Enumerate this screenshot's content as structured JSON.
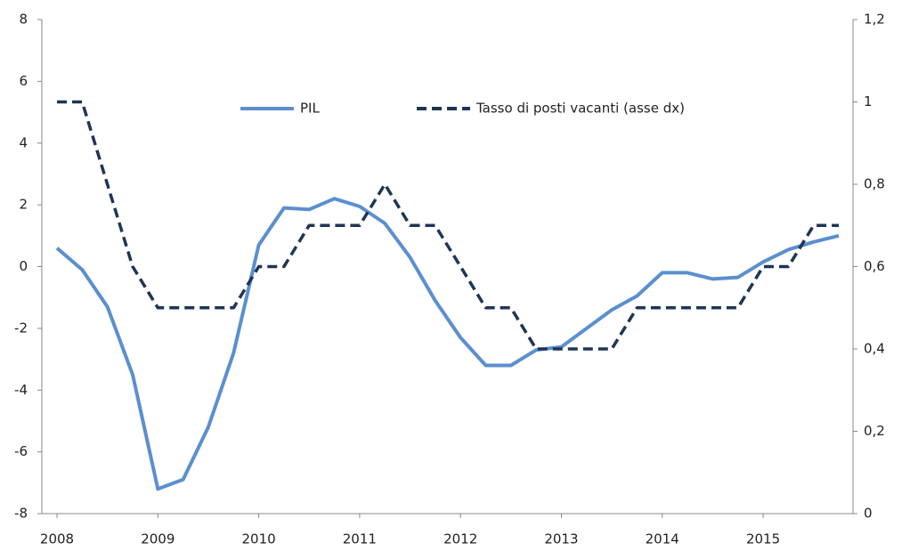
{
  "chart_data": {
    "type": "line",
    "categories": [
      "2008",
      null,
      null,
      null,
      "2009",
      null,
      null,
      null,
      "2010",
      null,
      null,
      null,
      "2011",
      null,
      null,
      null,
      "2012",
      null,
      null,
      null,
      "2013",
      null,
      null,
      null,
      "2014",
      null,
      null,
      null,
      "2015",
      null,
      null,
      null
    ],
    "series": [
      {
        "name": "PIL",
        "color": "#5b8fcf",
        "style": "solid",
        "values": [
          0.6,
          -0.1,
          -1.3,
          -3.5,
          -7.2,
          -6.9,
          -5.2,
          -2.8,
          0.7,
          1.9,
          1.85,
          2.2,
          1.95,
          1.4,
          0.3,
          -1.1,
          -2.3,
          -3.2,
          -3.2,
          -2.7,
          -2.6,
          -2.0,
          -1.4,
          -0.95,
          -0.2,
          -0.2,
          -0.4,
          -0.35,
          0.15,
          0.55,
          0.8,
          1.0
        ]
      },
      {
        "name": "Tasso di posti vacanti (asse dx)",
        "color": "#1f3556",
        "style": "dashed",
        "axis": "y2",
        "values": [
          1.0,
          1.0,
          0.8,
          0.6,
          0.5,
          0.5,
          0.5,
          0.5,
          0.6,
          0.6,
          0.7,
          0.7,
          0.7,
          0.8,
          0.7,
          0.7,
          0.6,
          0.5,
          0.5,
          0.4,
          0.4,
          0.4,
          0.4,
          0.5,
          0.5,
          0.5,
          0.5,
          0.5,
          0.6,
          0.6,
          0.7,
          0.7
        ]
      }
    ],
    "ylim": [
      -8,
      8
    ],
    "yticks": [
      -8,
      -6,
      -4,
      -2,
      0,
      2,
      4,
      6,
      8
    ],
    "y2lim": [
      0,
      1.2
    ],
    "y2ticks": [
      0,
      {
        "value": 0.2,
        "label": "0,2"
      },
      {
        "value": 0.4,
        "label": "0,4"
      },
      {
        "value": 0.6,
        "label": "0,6"
      },
      {
        "value": 0.8,
        "label": "0,8"
      },
      1,
      {
        "value": 1.2,
        "label": "1,2"
      }
    ],
    "grid": false
  }
}
